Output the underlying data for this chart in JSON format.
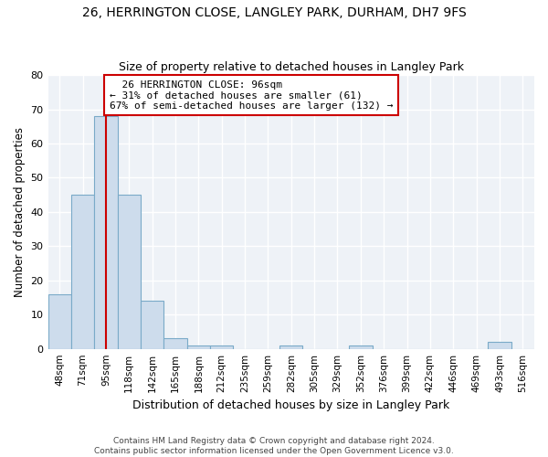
{
  "title": "26, HERRINGTON CLOSE, LANGLEY PARK, DURHAM, DH7 9FS",
  "subtitle": "Size of property relative to detached houses in Langley Park",
  "xlabel": "Distribution of detached houses by size in Langley Park",
  "ylabel": "Number of detached properties",
  "bar_color": "#cddcec",
  "bar_edge_color": "#7aaac8",
  "background_color": "#eef2f7",
  "grid_color": "#ffffff",
  "fig_bg_color": "#ffffff",
  "categories": [
    "48sqm",
    "71sqm",
    "95sqm",
    "118sqm",
    "142sqm",
    "165sqm",
    "188sqm",
    "212sqm",
    "235sqm",
    "259sqm",
    "282sqm",
    "305sqm",
    "329sqm",
    "352sqm",
    "376sqm",
    "399sqm",
    "422sqm",
    "446sqm",
    "469sqm",
    "493sqm",
    "516sqm"
  ],
  "values": [
    16,
    45,
    68,
    45,
    14,
    3,
    1,
    1,
    0,
    0,
    1,
    0,
    0,
    1,
    0,
    0,
    0,
    0,
    0,
    2,
    0
  ],
  "ylim": [
    0,
    80
  ],
  "yticks": [
    0,
    10,
    20,
    30,
    40,
    50,
    60,
    70,
    80
  ],
  "property_label": "26 HERRINGTON CLOSE: 96sqm",
  "pct_smaller": 31,
  "n_smaller": 61,
  "pct_larger_semi": 67,
  "n_larger_semi": 132,
  "vline_x_index": 2,
  "footer_text": "Contains HM Land Registry data © Crown copyright and database right 2024.\nContains public sector information licensed under the Open Government Licence v3.0.",
  "vline_color": "#cc0000",
  "annotation_border_color": "#cc0000"
}
